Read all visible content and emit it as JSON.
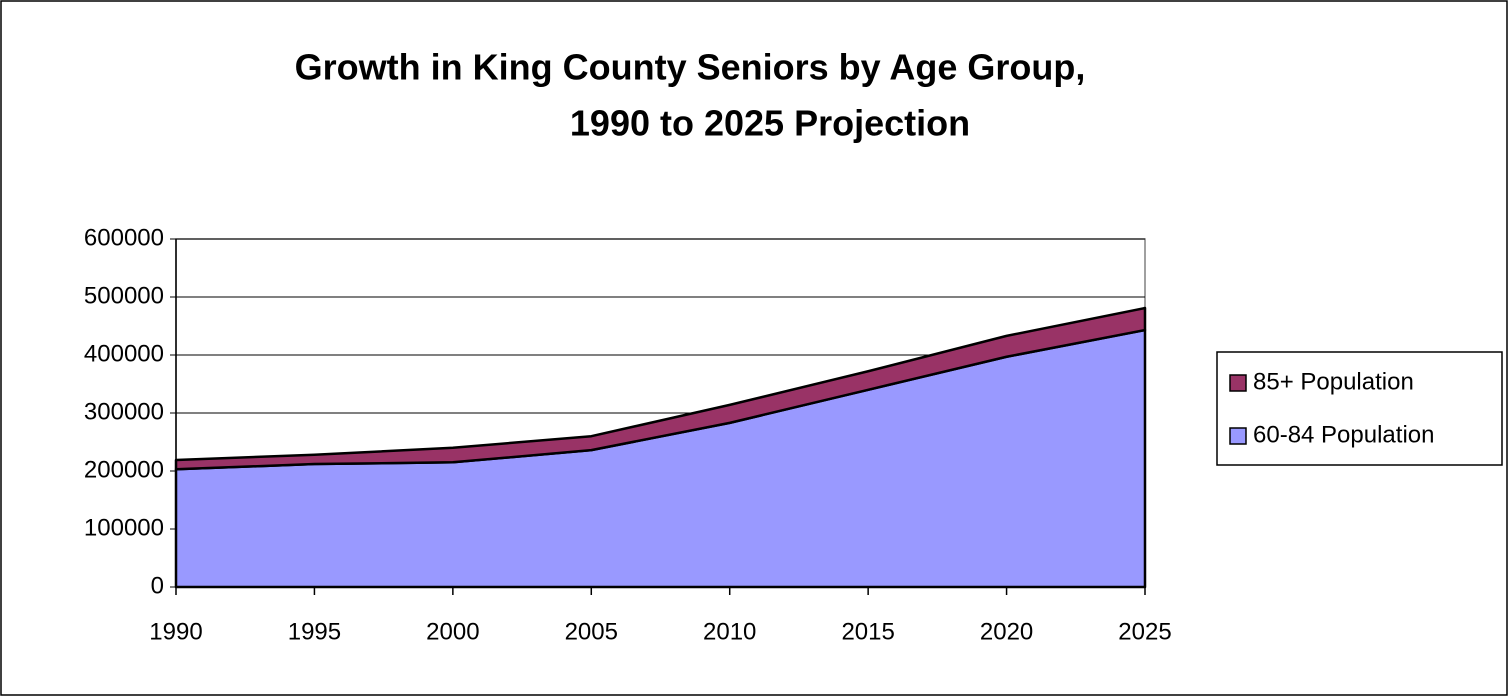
{
  "chart_data": {
    "type": "area",
    "stacked": true,
    "title": [
      "Growth in King County Seniors by Age Group,",
      "1990 to 2025 Projection"
    ],
    "x": [
      1990,
      1995,
      2000,
      2005,
      2010,
      2015,
      2020,
      2025
    ],
    "series": [
      {
        "name": "60-84 Population",
        "color": "#9999ff",
        "values": [
          203000,
          212000,
          215000,
          236000,
          283000,
          340000,
          397000,
          443000
        ]
      },
      {
        "name": "85+ Population",
        "color": "#993366",
        "values": [
          16000,
          16000,
          25000,
          24000,
          31000,
          32000,
          36000,
          38000
        ]
      }
    ],
    "xlim": [
      1990,
      2025
    ],
    "xticks": [
      1990,
      1995,
      2000,
      2005,
      2010,
      2015,
      2020,
      2025
    ],
    "ylim": [
      0,
      600000
    ],
    "yticks": [
      0,
      100000,
      200000,
      300000,
      400000,
      500000,
      600000
    ],
    "grid": true,
    "legend": "right"
  }
}
